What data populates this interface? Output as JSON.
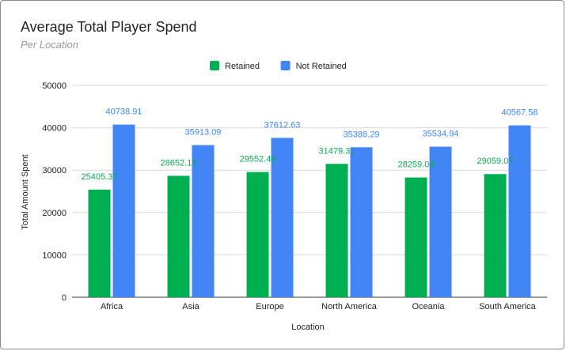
{
  "chart_data": {
    "type": "bar",
    "title": "Average Total Player Spend",
    "subtitle": "Per Location",
    "xlabel": "Location",
    "ylabel": "Total Amount Spent",
    "ylim": [
      0,
      50000
    ],
    "yticks": [
      0,
      10000,
      20000,
      30000,
      40000,
      50000
    ],
    "grid": true,
    "legend_position": "top",
    "categories": [
      "Africa",
      "Asia",
      "Europe",
      "North America",
      "Oceania",
      "South America"
    ],
    "series": [
      {
        "name": "Retained",
        "color": "#00b050",
        "values": [
          25405.37,
          28652.18,
          29552.46,
          31479.31,
          28259.04,
          29059.07
        ],
        "labels": [
          "25405.37",
          "28652.18",
          "29552.46",
          "31479.31",
          "28259.04",
          "29059.07"
        ]
      },
      {
        "name": "Not Retained",
        "color": "#4285f4",
        "values": [
          40738.91,
          35913.09,
          37612.63,
          35388.29,
          35534.94,
          40567.58
        ],
        "labels": [
          "40738.91",
          "35913.09",
          "37612.63",
          "35388.29",
          "35534.94",
          "40567.58"
        ]
      }
    ]
  }
}
